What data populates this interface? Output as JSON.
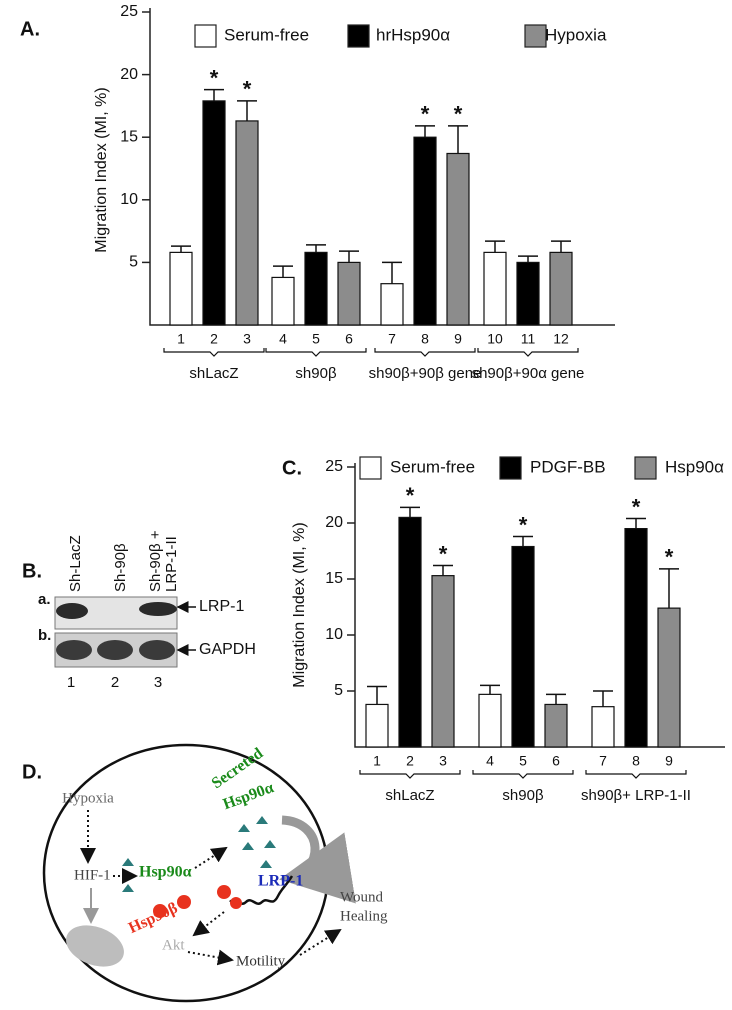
{
  "chart_data": [
    {
      "type": "bar",
      "panel_label": "A.",
      "y_label": "Migration Index (MI, %)",
      "categories": [
        "shLacZ",
        "sh90β",
        "sh90β+90β gene",
        "sh90β+90α gene"
      ],
      "series": [
        {
          "name": "Serum-free",
          "color": "#ffffff",
          "bar_labels": [
            "1",
            "4",
            "7",
            "10"
          ],
          "values": [
            5.8,
            3.8,
            3.3,
            5.8
          ],
          "errors": [
            0.5,
            0.9,
            1.7,
            0.9
          ],
          "annotations": [
            null,
            null,
            null,
            null
          ]
        },
        {
          "name": "hrHsp90α",
          "color": "#000000",
          "bar_labels": [
            "2",
            "5",
            "8",
            "11"
          ],
          "values": [
            17.9,
            5.8,
            15.0,
            5.0
          ],
          "errors": [
            0.9,
            0.6,
            0.9,
            0.5
          ],
          "annotations": [
            "*",
            null,
            "*",
            null
          ]
        },
        {
          "name": "Hypoxia",
          "color": "#8c8c8c",
          "bar_labels": [
            "3",
            "6",
            "9",
            "12"
          ],
          "values": [
            16.3,
            5.0,
            13.7,
            5.8
          ],
          "errors": [
            1.6,
            0.9,
            2.2,
            0.9
          ],
          "annotations": [
            "*",
            null,
            "*",
            null
          ]
        }
      ],
      "ylim": [
        0,
        25
      ],
      "yticks": [
        5,
        10,
        15,
        20,
        25
      ]
    },
    {
      "type": "bar",
      "panel_label": "C.",
      "y_label": "Migration Index (MI, %)",
      "categories": [
        "shLacZ",
        "sh90β",
        "sh90β+ LRP-1-II"
      ],
      "series": [
        {
          "name": "Serum-free",
          "color": "#ffffff",
          "bar_labels": [
            "1",
            "4",
            "7"
          ],
          "values": [
            3.8,
            4.7,
            3.6
          ],
          "errors": [
            1.6,
            0.8,
            1.4
          ],
          "annotations": [
            null,
            null,
            null
          ]
        },
        {
          "name": "PDGF-BB",
          "color": "#000000",
          "bar_labels": [
            "2",
            "5",
            "8"
          ],
          "values": [
            20.5,
            17.9,
            19.5
          ],
          "errors": [
            0.9,
            0.9,
            0.9
          ],
          "annotations": [
            "*",
            "*",
            "*"
          ]
        },
        {
          "name": "Hsp90α",
          "color": "#8c8c8c",
          "bar_labels": [
            "3",
            "6",
            "9"
          ],
          "values": [
            15.3,
            3.8,
            12.4
          ],
          "errors": [
            0.9,
            0.9,
            3.5
          ],
          "annotations": [
            "*",
            null,
            "*"
          ]
        }
      ],
      "ylim": [
        0,
        25
      ],
      "yticks": [
        5,
        10,
        15,
        20,
        25
      ]
    }
  ],
  "blot": {
    "panel_label": "B.",
    "lanes": [
      {
        "label": [
          "Sh-LacZ"
        ],
        "number": "1"
      },
      {
        "label": [
          "Sh-90β"
        ],
        "number": "2"
      },
      {
        "label": [
          "Sh-90β +",
          "LRP-1-II"
        ],
        "number": "3"
      }
    ],
    "rows": [
      {
        "label": "a.",
        "protein": "LRP-1"
      },
      {
        "label": "b.",
        "protein": "GAPDH"
      }
    ]
  },
  "diagram": {
    "panel_label": "D.",
    "hypoxia": "Hypoxia",
    "hif": "HIF-1",
    "hsp90a": "Hsp90α",
    "secreted": [
      "Secreted",
      "Hsp90α"
    ],
    "hsp90b": "Hsp90β",
    "lrp": "LRP-1",
    "akt": "Akt",
    "motility": "Motility",
    "wound": [
      "Wound",
      "Healing"
    ]
  }
}
